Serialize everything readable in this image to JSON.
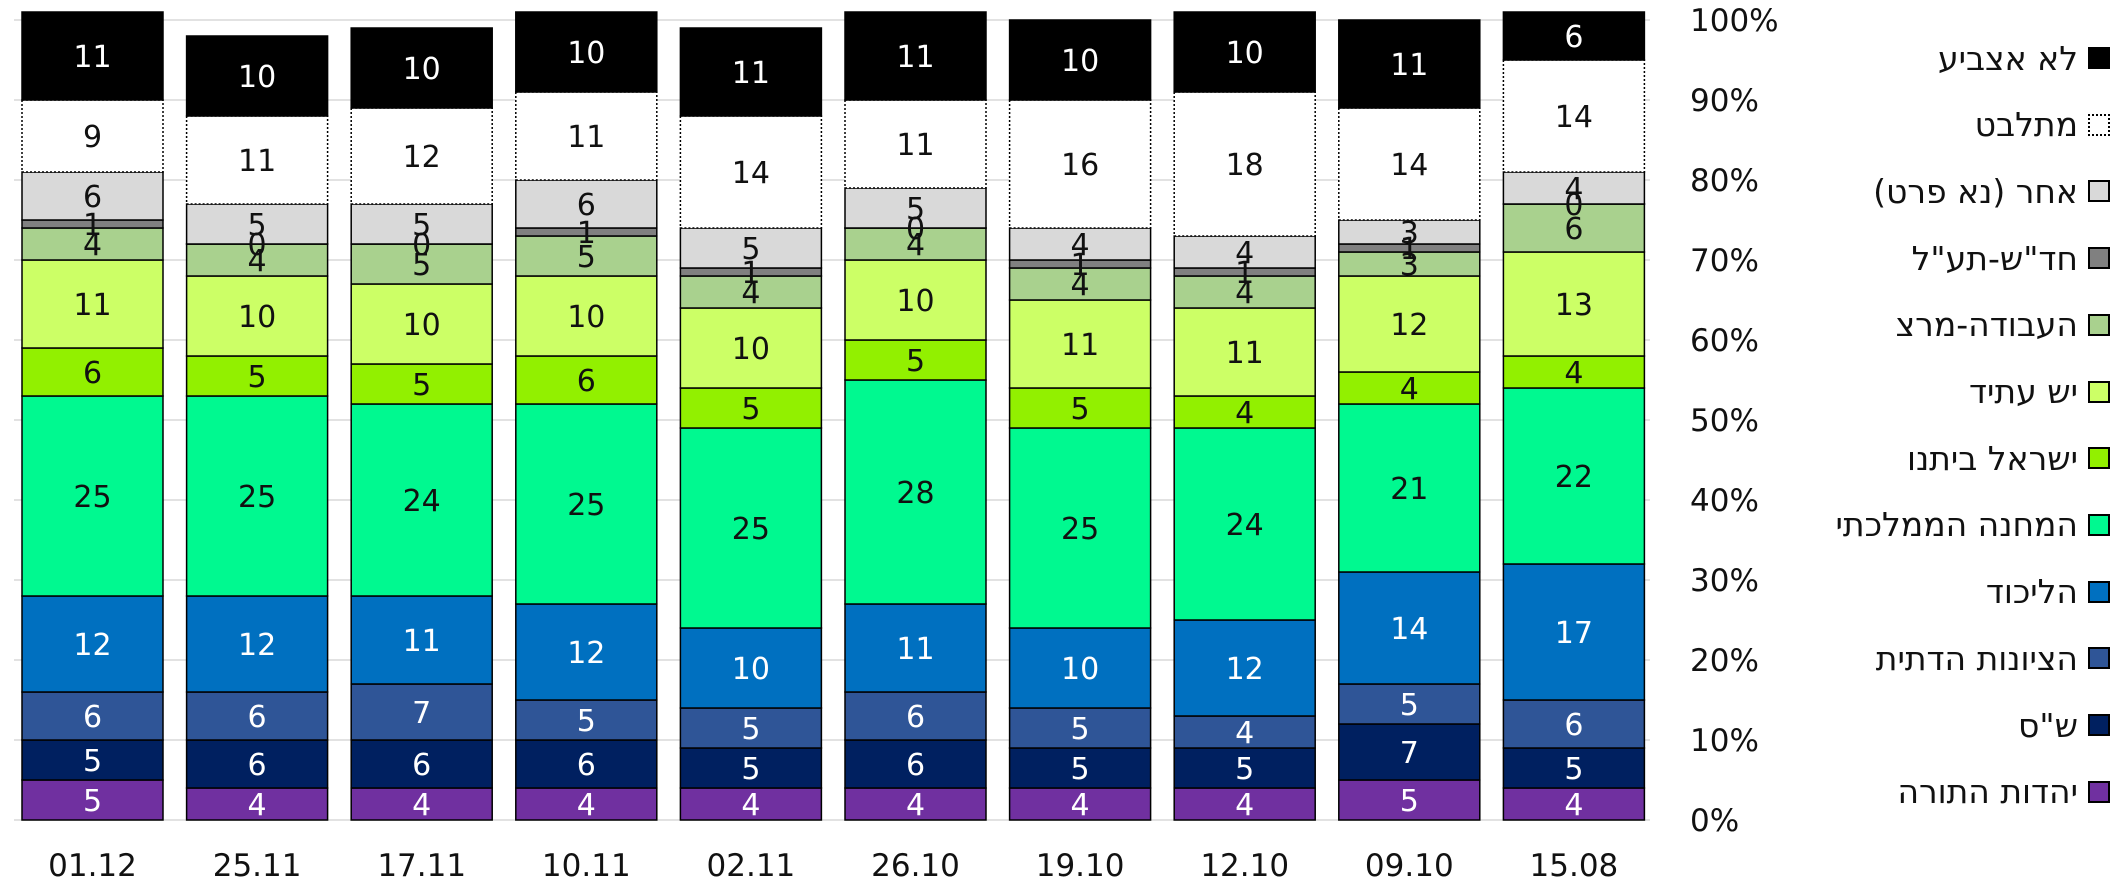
{
  "chart_data": {
    "type": "bar",
    "stacked": true,
    "percent_stacked": true,
    "categories": [
      "01.12",
      "25.11",
      "17.11",
      "10.11",
      "02.11",
      "26.10",
      "19.10",
      "12.10",
      "09.10",
      "15.08"
    ],
    "y_ticks": [
      "0%",
      "10%",
      "20%",
      "30%",
      "40%",
      "50%",
      "60%",
      "70%",
      "80%",
      "90%",
      "100%"
    ],
    "ylim": [
      0,
      100
    ],
    "grid": true,
    "legend_position": "right",
    "series": [
      {
        "name": "יהדות התורה",
        "color": "#7030a0",
        "label_color": "#ffffff",
        "values": [
          5,
          4,
          4,
          4,
          4,
          4,
          4,
          4,
          5,
          4
        ]
      },
      {
        "name": "ש\"ס",
        "color": "#002060",
        "label_color": "#ffffff",
        "values": [
          5,
          6,
          6,
          6,
          5,
          6,
          5,
          5,
          7,
          5
        ]
      },
      {
        "name": "הציונות הדתית",
        "color": "#2f5597",
        "label_color": "#ffffff",
        "values": [
          6,
          6,
          7,
          5,
          5,
          6,
          5,
          4,
          5,
          6
        ]
      },
      {
        "name": "הליכוד",
        "color": "#0070c0",
        "label_color": "#ffffff",
        "values": [
          12,
          12,
          11,
          12,
          10,
          11,
          10,
          12,
          14,
          17
        ]
      },
      {
        "name": "המחנה הממלכתי",
        "color": "#00f990",
        "label_color": "#111111",
        "values": [
          25,
          25,
          24,
          25,
          25,
          28,
          25,
          24,
          21,
          22
        ]
      },
      {
        "name": "ישראל ביתנו",
        "color": "#92f000",
        "label_color": "#111111",
        "values": [
          6,
          5,
          5,
          6,
          5,
          5,
          5,
          4,
          4,
          4
        ]
      },
      {
        "name": "יש עתיד",
        "color": "#ccff66",
        "label_color": "#111111",
        "values": [
          11,
          10,
          10,
          10,
          10,
          10,
          11,
          11,
          12,
          13
        ]
      },
      {
        "name": "העבודה-מרצ",
        "color": "#a9d18e",
        "label_color": "#111111",
        "values": [
          4,
          4,
          5,
          5,
          4,
          4,
          4,
          4,
          3,
          6
        ]
      },
      {
        "name": "חד\"ש-תע\"ל",
        "color": "#808080",
        "label_color": "#111111",
        "values": [
          1,
          0,
          0,
          1,
          1,
          0,
          1,
          1,
          1,
          0
        ]
      },
      {
        "name": "אחר (נא פרט)",
        "color": "#d9d9d9",
        "label_color": "#111111",
        "values": [
          6,
          5,
          5,
          6,
          5,
          5,
          4,
          4,
          3,
          4
        ]
      },
      {
        "name": "מתלבט",
        "color": "#ffffff",
        "label_color": "#111111",
        "dotted": true,
        "values": [
          9,
          11,
          12,
          11,
          14,
          11,
          16,
          18,
          14,
          14
        ]
      },
      {
        "name": "לא אצביע",
        "color": "#000000",
        "label_color": "#ffffff",
        "values": [
          11,
          10,
          10,
          10,
          11,
          11,
          10,
          10,
          11,
          6
        ]
      }
    ]
  }
}
